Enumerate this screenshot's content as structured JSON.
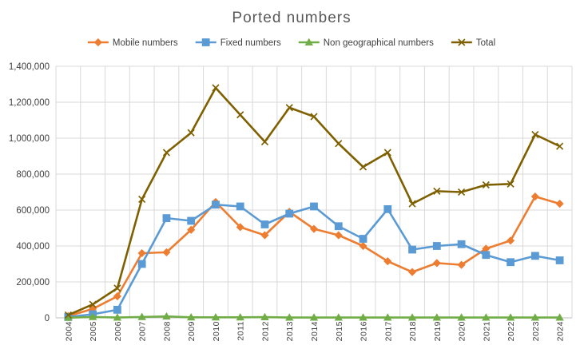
{
  "chart_data": {
    "type": "line",
    "title": "Ported numbers",
    "xlabel": "",
    "ylabel": "",
    "categories": [
      "2004",
      "2005",
      "2006",
      "2007",
      "2008",
      "2009",
      "2010",
      "2011",
      "2012",
      "2013",
      "2014",
      "2015",
      "2016",
      "2017",
      "2018",
      "2019",
      "2020",
      "2021",
      "2022",
      "2023",
      "2024"
    ],
    "ylim": [
      0,
      1400000
    ],
    "yticks": [
      0,
      200000,
      400000,
      600000,
      800000,
      1000000,
      1200000,
      1400000
    ],
    "ytick_labels": [
      "0",
      "200,000",
      "400,000",
      "600,000",
      "800,000",
      "1,000,000",
      "1,200,000",
      "1,400,000"
    ],
    "grid": "vertical and horizontal",
    "legend_position": "top",
    "series": [
      {
        "name": "Mobile numbers",
        "color": "#ED7D31",
        "marker": "diamond",
        "values": [
          10000,
          50000,
          120000,
          360000,
          365000,
          490000,
          645000,
          505000,
          460000,
          590000,
          495000,
          460000,
          400000,
          315000,
          255000,
          305000,
          295000,
          385000,
          430000,
          675000,
          635000
        ]
      },
      {
        "name": "Fixed numbers",
        "color": "#5B9BD5",
        "marker": "square",
        "values": [
          5000,
          20000,
          45000,
          300000,
          555000,
          540000,
          630000,
          620000,
          520000,
          580000,
          620000,
          510000,
          440000,
          605000,
          380000,
          400000,
          410000,
          350000,
          310000,
          345000,
          320000
        ]
      },
      {
        "name": "Non geographical numbers",
        "color": "#70AD47",
        "marker": "triangle",
        "values": [
          1000,
          5000,
          2000,
          5000,
          8000,
          3000,
          3000,
          3000,
          4000,
          2000,
          2000,
          2000,
          2000,
          2000,
          2000,
          2000,
          2000,
          2000,
          2000,
          2000,
          2000
        ]
      },
      {
        "name": "Total",
        "color": "#7F6000",
        "marker": "x",
        "values": [
          16000,
          75000,
          165000,
          660000,
          920000,
          1030000,
          1280000,
          1130000,
          980000,
          1170000,
          1120000,
          970000,
          840000,
          920000,
          635000,
          705000,
          700000,
          740000,
          745000,
          1020000,
          955000
        ]
      }
    ]
  }
}
